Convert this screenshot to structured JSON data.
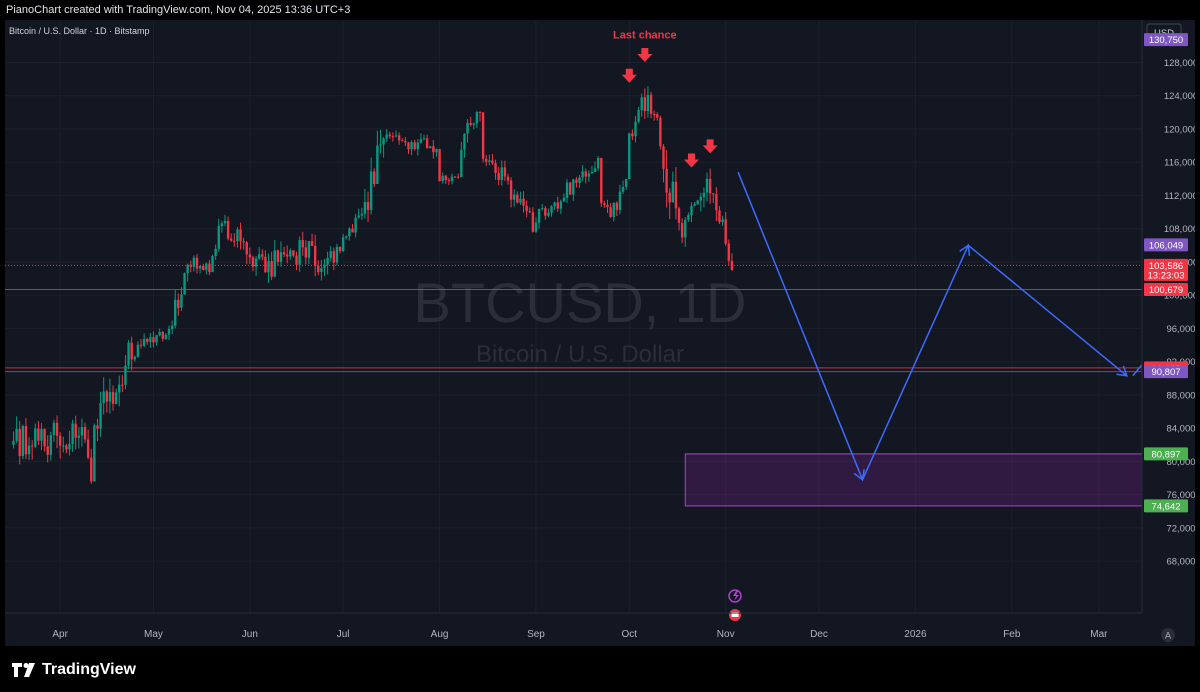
{
  "header": {
    "attribution": "PianoChart created with TradingView.com, Nov 04, 2025 13:36 UTC+3"
  },
  "footer": {
    "brand": "TradingView"
  },
  "colors": {
    "up": "#089981",
    "down": "#f23645",
    "background": "#131722",
    "projection": "#2962ff",
    "zone": "#9c27b0",
    "annotation": "#f23645"
  },
  "chart_data": {
    "type": "candlestick",
    "legend": "Bitcoin / U.S. Dollar · 1D · Bitstamp",
    "watermark": "BTCUSD, 1D",
    "watermark_sub": "Bitcoin / U.S. Dollar",
    "currency": "USD",
    "y_ticks": [
      "128,000",
      "124,000",
      "120,000",
      "116,000",
      "112,000",
      "108,000",
      "104,000",
      "100,000",
      "96,000",
      "92,000",
      "88,000",
      "84,000",
      "80,000",
      "76,000",
      "72,000",
      "68,000"
    ],
    "x_ticks": [
      "Apr",
      "May",
      "Jun",
      "Jul",
      "Aug",
      "Sep",
      "Oct",
      "Nov",
      "Dec",
      "2026",
      "Feb",
      "Mar"
    ],
    "ylim": [
      66000,
      133000
    ],
    "price_tags": [
      {
        "label": "130,750",
        "value": 130750,
        "color": "#7e57c2"
      },
      {
        "label": "106,049",
        "value": 106049,
        "color": "#7e57c2"
      },
      {
        "label": "103,586",
        "value": 103586,
        "color": "#f23645",
        "sub": "13:23:03"
      },
      {
        "label": "100,679",
        "value": 100679,
        "color": "#f23645"
      },
      {
        "label": "91,257",
        "value": 91257,
        "color": "#f23645"
      },
      {
        "label": "90,807",
        "value": 90807,
        "color": "#7e57c2"
      },
      {
        "label": "80,897",
        "value": 80897,
        "color": "#4caf50"
      },
      {
        "label": "74,642",
        "value": 74642,
        "color": "#4caf50"
      }
    ],
    "annotations": [
      {
        "text": "Last chance",
        "date": "2025-10-06",
        "value": 131500
      }
    ],
    "arrows": [
      {
        "date": "2025-10-06",
        "value": 128300
      },
      {
        "date": "2025-10-01",
        "value": 125800
      },
      {
        "date": "2025-10-21",
        "value": 115600
      },
      {
        "date": "2025-10-27",
        "value": 117300
      }
    ],
    "zone": {
      "start": "2025-10-19",
      "end": "2026-03-31",
      "low": 74642,
      "high": 80897
    },
    "projection": [
      {
        "date": "2025-11-05",
        "value": 114800
      },
      {
        "date": "2025-12-15",
        "value": 77800
      },
      {
        "date": "2026-01-18",
        "value": 106000
      },
      {
        "date": "2026-03-10",
        "value": 90300
      }
    ],
    "hlines": [
      100679,
      91257,
      90807
    ],
    "last_price_line": 103586,
    "segments": [
      {
        "start": "2025-03-17",
        "open": 82000,
        "close": 83500,
        "low": 76000,
        "high": 89000
      },
      {
        "start": "2025-04-09",
        "open": 83500,
        "close": 78500,
        "low": 74800,
        "high": 86000
      },
      {
        "start": "2025-04-12",
        "open": 84000,
        "close": 93000,
        "low": 82000,
        "high": 95000
      },
      {
        "start": "2025-04-25",
        "open": 93000,
        "close": 96000,
        "low": 92000,
        "high": 97500
      },
      {
        "start": "2025-05-08",
        "open": 97000,
        "close": 104000,
        "low": 96000,
        "high": 106000
      },
      {
        "start": "2025-05-13",
        "open": 104000,
        "close": 103500,
        "low": 101000,
        "high": 106000
      },
      {
        "start": "2025-05-20",
        "open": 104500,
        "close": 109000,
        "low": 104000,
        "high": 112000
      },
      {
        "start": "2025-05-24",
        "open": 109000,
        "close": 104000,
        "low": 102000,
        "high": 111000
      },
      {
        "start": "2025-06-05",
        "open": 103000,
        "close": 106000,
        "low": 100500,
        "high": 110500
      },
      {
        "start": "2025-06-22",
        "open": 103000,
        "close": 106500,
        "low": 98400,
        "high": 109000
      },
      {
        "start": "2025-07-02",
        "open": 106500,
        "close": 110000,
        "low": 105000,
        "high": 111500
      },
      {
        "start": "2025-07-08",
        "open": 110000,
        "close": 118500,
        "low": 108500,
        "high": 123000
      },
      {
        "start": "2025-07-15",
        "open": 118500,
        "close": 118000,
        "low": 115000,
        "high": 121000
      },
      {
        "start": "2025-08-01",
        "open": 113500,
        "close": 114500,
        "low": 112000,
        "high": 116000
      },
      {
        "start": "2025-08-08",
        "open": 117500,
        "close": 122000,
        "low": 115500,
        "high": 124000
      },
      {
        "start": "2025-08-15",
        "open": 117500,
        "close": 113500,
        "low": 112500,
        "high": 119000
      },
      {
        "start": "2025-08-24",
        "open": 113000,
        "close": 108500,
        "low": 107500,
        "high": 114500
      },
      {
        "start": "2025-09-01",
        "open": 109000,
        "close": 111500,
        "low": 107500,
        "high": 113000
      },
      {
        "start": "2025-09-10",
        "open": 112000,
        "close": 116000,
        "low": 111000,
        "high": 117500
      },
      {
        "start": "2025-09-22",
        "open": 112500,
        "close": 109500,
        "low": 108500,
        "high": 114000
      },
      {
        "start": "2025-09-26",
        "open": 109500,
        "close": 113000,
        "low": 108500,
        "high": 115000
      },
      {
        "start": "2025-10-01",
        "open": 117000,
        "close": 124500,
        "low": 116500,
        "high": 126000
      },
      {
        "start": "2025-10-08",
        "open": 124000,
        "close": 121500,
        "low": 119000,
        "high": 125500
      },
      {
        "start": "2025-10-10",
        "open": 120000,
        "close": 111000,
        "low": 104500,
        "high": 122000
      },
      {
        "start": "2025-10-17",
        "open": 107000,
        "close": 111000,
        "low": 103500,
        "high": 113500
      },
      {
        "start": "2025-10-26",
        "open": 114500,
        "close": 110000,
        "low": 106000,
        "high": 116500
      },
      {
        "start": "2025-10-31",
        "open": 109500,
        "close": 103586,
        "low": 103000,
        "high": 111000
      },
      {
        "start": "2025-11-04",
        "open": 103586,
        "close": 103586,
        "low": 103586,
        "high": 103586
      }
    ]
  }
}
